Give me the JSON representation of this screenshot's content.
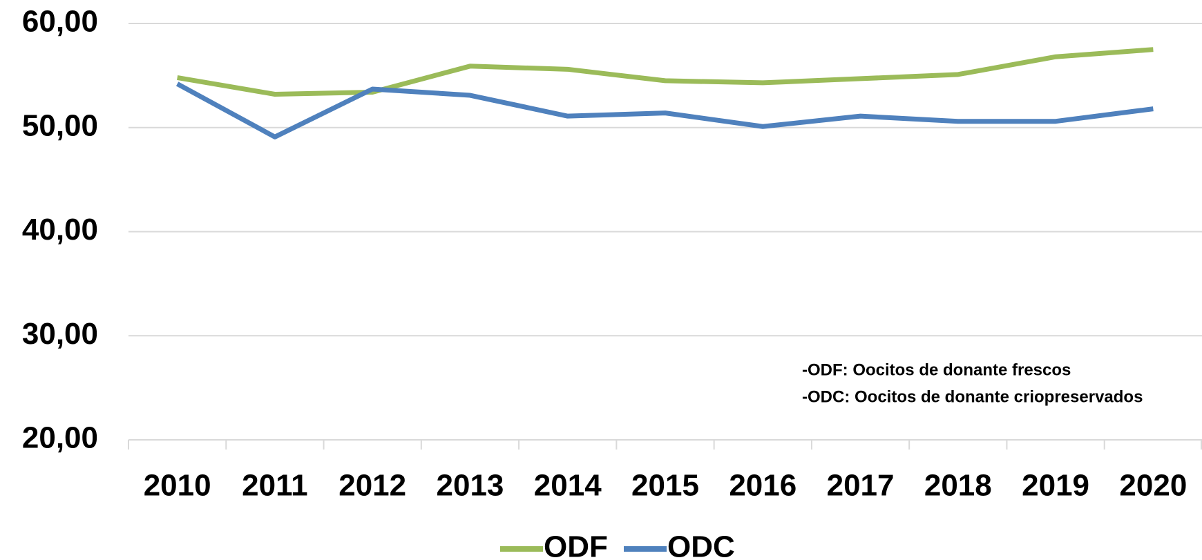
{
  "chart_data": {
    "type": "line",
    "categories": [
      "2010",
      "2011",
      "2012",
      "2013",
      "2014",
      "2015",
      "2016",
      "2017",
      "2018",
      "2019",
      "2020"
    ],
    "series": [
      {
        "name": "ODF",
        "color": "#9bbb59",
        "values": [
          54.8,
          53.2,
          53.4,
          55.9,
          55.6,
          54.5,
          54.3,
          54.7,
          55.1,
          56.8,
          57.5
        ]
      },
      {
        "name": "ODC",
        "color": "#4f81bd",
        "values": [
          54.2,
          49.1,
          53.7,
          53.1,
          51.1,
          51.4,
          50.1,
          51.1,
          50.6,
          50.6,
          51.8
        ]
      }
    ],
    "ylim": [
      20,
      60
    ],
    "yticks": [
      {
        "value": 20,
        "label": "20,00"
      },
      {
        "value": 30,
        "label": "30,00"
      },
      {
        "value": 40,
        "label": "40,00"
      },
      {
        "value": 50,
        "label": "50,00"
      },
      {
        "value": 60,
        "label": "60,00"
      }
    ],
    "grid": true,
    "legend": "bottom",
    "annotations": [
      "-ODF: Oocitos de donante frescos",
      "-ODC: Oocitos de donante criopreservados"
    ]
  }
}
